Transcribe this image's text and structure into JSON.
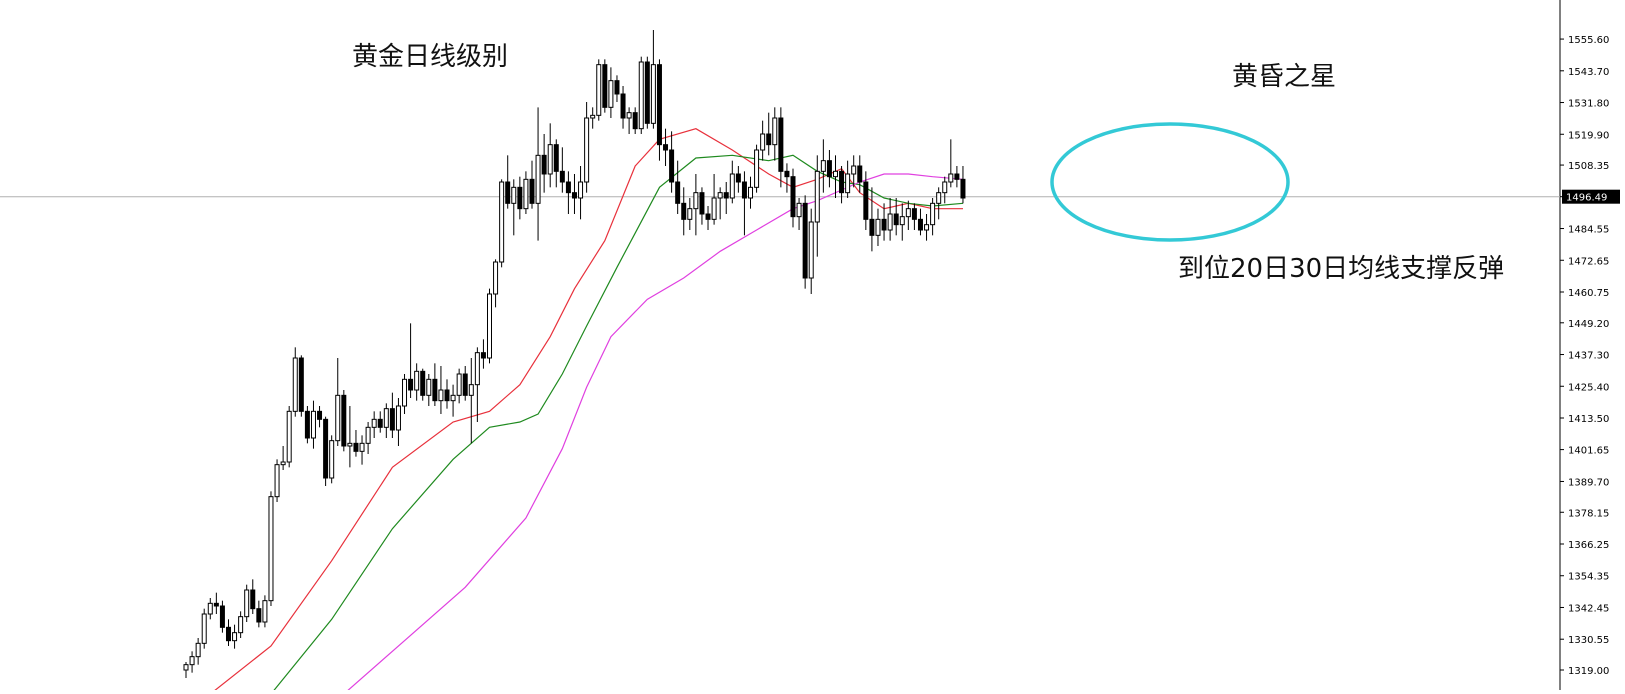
{
  "annotations": {
    "title": "黄金日线级别",
    "pattern": "黄昏之星",
    "support": "到位20日30日均线支撑反弹"
  },
  "colors": {
    "background": "#ffffff",
    "candle_up_fill": "#ffffff",
    "candle_down_fill": "#000000",
    "candle_outline": "#000000",
    "ma_red": "#e8313c",
    "ma_green": "#1f8a1f",
    "ma_magenta": "#e040e0",
    "circle": "#33c9d6",
    "crosshair": "#b0b0b0"
  },
  "chart_data": {
    "type": "candlestick",
    "title": "",
    "xlabel": "",
    "ylabel": "",
    "ylim": [
      1313,
      1562
    ],
    "ytick_labels": [
      "1555.60",
      "1543.70",
      "1531.80",
      "1519.90",
      "1508.35",
      "1496.49",
      "1484.55",
      "1472.65",
      "1460.75",
      "1449.20",
      "1437.30",
      "1425.40",
      "1413.50",
      "1401.65",
      "1389.70",
      "1378.15",
      "1366.25",
      "1354.35",
      "1342.45",
      "1330.55",
      "1319.00"
    ],
    "current_price": "1496.49",
    "grid": false,
    "candles": [
      [
        1319.0,
        1322.0,
        1316.0,
        1321.0
      ],
      [
        1321.0,
        1326.0,
        1318.0,
        1324.0
      ],
      [
        1324.0,
        1331.0,
        1321.0,
        1329.0
      ],
      [
        1329.0,
        1342.0,
        1327.0,
        1340.0
      ],
      [
        1340.0,
        1346.0,
        1338.0,
        1344.0
      ],
      [
        1344.0,
        1348.0,
        1340.0,
        1343.0
      ],
      [
        1343.0,
        1345.0,
        1333.0,
        1335.0
      ],
      [
        1335.0,
        1338.0,
        1328.0,
        1330.0
      ],
      [
        1330.0,
        1336.0,
        1327.0,
        1333.0
      ],
      [
        1333.0,
        1341.0,
        1331.0,
        1339.0
      ],
      [
        1339.0,
        1351.0,
        1337.0,
        1349.0
      ],
      [
        1349.0,
        1353.0,
        1340.0,
        1342.0
      ],
      [
        1342.0,
        1345.0,
        1335.0,
        1337.0
      ],
      [
        1337.0,
        1347.0,
        1335.0,
        1345.0
      ],
      [
        1345.0,
        1386.0,
        1343.0,
        1384.0
      ],
      [
        1384.0,
        1398.0,
        1382.0,
        1396.0
      ],
      [
        1396.0,
        1403.0,
        1394.0,
        1397.0
      ],
      [
        1397.0,
        1418.0,
        1395.0,
        1416.0
      ],
      [
        1416.0,
        1440.0,
        1414.0,
        1436.0
      ],
      [
        1436.0,
        1437.0,
        1414.0,
        1416.0
      ],
      [
        1416.0,
        1418.0,
        1404.0,
        1406.0
      ],
      [
        1406.0,
        1420.0,
        1402.0,
        1416.0
      ],
      [
        1416.0,
        1418.0,
        1410.0,
        1413.0
      ],
      [
        1413.0,
        1414.0,
        1388.0,
        1391.0
      ],
      [
        1391.0,
        1407.0,
        1389.0,
        1405.0
      ],
      [
        1405.0,
        1436.0,
        1403.0,
        1422.0
      ],
      [
        1422.0,
        1424.0,
        1401.0,
        1403.0
      ],
      [
        1403.0,
        1418.0,
        1395.0,
        1404.0
      ],
      [
        1404.0,
        1409.0,
        1399.0,
        1401.0
      ],
      [
        1401.0,
        1407.0,
        1396.0,
        1404.0
      ],
      [
        1404.0,
        1412.0,
        1400.0,
        1410.0
      ],
      [
        1410.0,
        1416.0,
        1406.0,
        1413.0
      ],
      [
        1413.0,
        1416.0,
        1408.0,
        1410.0
      ],
      [
        1410.0,
        1419.0,
        1406.0,
        1417.0
      ],
      [
        1417.0,
        1423.0,
        1406.0,
        1409.0
      ],
      [
        1409.0,
        1421.0,
        1403.0,
        1418.0
      ],
      [
        1418.0,
        1430.0,
        1415.0,
        1428.0
      ],
      [
        1428.0,
        1449.0,
        1421.0,
        1424.0
      ],
      [
        1424.0,
        1434.0,
        1420.0,
        1431.0
      ],
      [
        1431.0,
        1432.0,
        1420.0,
        1422.0
      ],
      [
        1422.0,
        1430.0,
        1418.0,
        1428.0
      ],
      [
        1428.0,
        1434.0,
        1418.0,
        1420.0
      ],
      [
        1420.0,
        1433.0,
        1415.0,
        1424.0
      ],
      [
        1424.0,
        1428.0,
        1417.0,
        1420.0
      ],
      [
        1420.0,
        1426.0,
        1414.0,
        1422.0
      ],
      [
        1422.0,
        1432.0,
        1419.0,
        1430.0
      ],
      [
        1430.0,
        1433.0,
        1420.0,
        1422.0
      ],
      [
        1422.0,
        1436.0,
        1404.0,
        1426.0
      ],
      [
        1426.0,
        1440.0,
        1412.0,
        1438.0
      ],
      [
        1438.0,
        1443.0,
        1432.0,
        1436.0
      ],
      [
        1436.0,
        1462.0,
        1434.0,
        1460.0
      ],
      [
        1460.0,
        1473.0,
        1455.0,
        1472.0
      ],
      [
        1472.0,
        1503.0,
        1470.0,
        1502.0
      ],
      [
        1502.0,
        1512.0,
        1492.0,
        1494.0
      ],
      [
        1494.0,
        1503.0,
        1482.0,
        1500.0
      ],
      [
        1500.0,
        1504.0,
        1488.0,
        1492.0
      ],
      [
        1492.0,
        1506.0,
        1490.0,
        1503.0
      ],
      [
        1503.0,
        1510.0,
        1492.0,
        1494.0
      ],
      [
        1494.0,
        1530.0,
        1480.0,
        1512.0
      ],
      [
        1512.0,
        1520.0,
        1498.0,
        1505.0
      ],
      [
        1505.0,
        1524.0,
        1500.0,
        1516.0
      ],
      [
        1516.0,
        1518.0,
        1500.0,
        1506.0
      ],
      [
        1506.0,
        1515.0,
        1498.0,
        1502.0
      ],
      [
        1502.0,
        1506.0,
        1490.0,
        1498.0
      ],
      [
        1498.0,
        1505.0,
        1490.0,
        1496.0
      ],
      [
        1496.0,
        1508.0,
        1488.0,
        1502.0
      ],
      [
        1502.0,
        1532.0,
        1498.0,
        1526.0
      ],
      [
        1526.0,
        1530.0,
        1522.0,
        1527.0
      ],
      [
        1527.0,
        1548.0,
        1525.0,
        1546.0
      ],
      [
        1546.0,
        1548.0,
        1528.0,
        1530.0
      ],
      [
        1530.0,
        1545.0,
        1526.0,
        1540.0
      ],
      [
        1540.0,
        1542.0,
        1532.0,
        1535.0
      ],
      [
        1535.0,
        1538.0,
        1522.0,
        1526.0
      ],
      [
        1526.0,
        1530.0,
        1520.0,
        1528.0
      ],
      [
        1528.0,
        1530.0,
        1520.0,
        1522.0
      ],
      [
        1522.0,
        1549.0,
        1520.0,
        1547.0
      ],
      [
        1547.0,
        1549.0,
        1522.0,
        1524.0
      ],
      [
        1524.0,
        1559.0,
        1522.0,
        1546.0
      ],
      [
        1546.0,
        1548.0,
        1510.0,
        1516.0
      ],
      [
        1516.0,
        1522.0,
        1508.0,
        1514.0
      ],
      [
        1514.0,
        1521.0,
        1498.0,
        1502.0
      ],
      [
        1502.0,
        1510.0,
        1490.0,
        1494.0
      ],
      [
        1494.0,
        1500.0,
        1482.0,
        1488.0
      ],
      [
        1488.0,
        1496.0,
        1484.0,
        1492.0
      ],
      [
        1492.0,
        1505.0,
        1482.0,
        1498.0
      ],
      [
        1498.0,
        1500.0,
        1486.0,
        1490.0
      ],
      [
        1490.0,
        1493.0,
        1484.0,
        1488.0
      ],
      [
        1488.0,
        1505.0,
        1486.0,
        1496.0
      ],
      [
        1496.0,
        1500.0,
        1488.0,
        1498.0
      ],
      [
        1498.0,
        1502.0,
        1490.0,
        1496.0
      ],
      [
        1496.0,
        1510.0,
        1494.0,
        1505.0
      ],
      [
        1505.0,
        1508.0,
        1498.0,
        1502.0
      ],
      [
        1502.0,
        1506.0,
        1482.0,
        1496.0
      ],
      [
        1496.0,
        1504.0,
        1492.0,
        1500.0
      ],
      [
        1500.0,
        1516.0,
        1498.0,
        1514.0
      ],
      [
        1514.0,
        1525.0,
        1510.0,
        1520.0
      ],
      [
        1520.0,
        1528.0,
        1512.0,
        1516.0
      ],
      [
        1516.0,
        1530.0,
        1510.0,
        1526.0
      ],
      [
        1526.0,
        1530.0,
        1500.0,
        1506.0
      ],
      [
        1506.0,
        1509.0,
        1498.0,
        1504.0
      ],
      [
        1504.0,
        1507.0,
        1485.0,
        1489.0
      ],
      [
        1489.0,
        1496.0,
        1484.0,
        1494.0
      ],
      [
        1494.0,
        1497.0,
        1462.0,
        1466.0
      ],
      [
        1466.0,
        1492.0,
        1460.0,
        1487.0
      ],
      [
        1487.0,
        1512.0,
        1474.0,
        1506.0
      ],
      [
        1506.0,
        1518.0,
        1498.0,
        1510.0
      ],
      [
        1510.0,
        1514.0,
        1500.0,
        1504.0
      ],
      [
        1504.0,
        1512.0,
        1496.0,
        1506.0
      ],
      [
        1506.0,
        1508.0,
        1494.0,
        1498.0
      ],
      [
        1498.0,
        1510.0,
        1496.0,
        1505.0
      ],
      [
        1505.0,
        1512.0,
        1500.0,
        1508.0
      ],
      [
        1508.0,
        1512.0,
        1498.0,
        1502.0
      ],
      [
        1502.0,
        1506.0,
        1484.0,
        1488.0
      ],
      [
        1488.0,
        1500.0,
        1476.0,
        1482.0
      ],
      [
        1482.0,
        1492.0,
        1478.0,
        1488.0
      ],
      [
        1488.0,
        1494.0,
        1480.0,
        1484.0
      ],
      [
        1484.0,
        1496.0,
        1480.0,
        1490.0
      ],
      [
        1490.0,
        1496.0,
        1482.0,
        1486.0
      ],
      [
        1486.0,
        1494.0,
        1480.0,
        1489.0
      ],
      [
        1489.0,
        1495.0,
        1484.0,
        1492.0
      ],
      [
        1492.0,
        1494.0,
        1484.0,
        1488.0
      ],
      [
        1488.0,
        1492.0,
        1482.0,
        1484.0
      ],
      [
        1484.0,
        1490.0,
        1480.0,
        1486.0
      ],
      [
        1486.0,
        1496.0,
        1482.0,
        1494.0
      ],
      [
        1494.0,
        1500.0,
        1488.0,
        1498.0
      ],
      [
        1498.0,
        1504.0,
        1494.0,
        1502.0
      ],
      [
        1502.0,
        1518.0,
        1500.0,
        1505.0
      ],
      [
        1505.0,
        1508.0,
        1500.0,
        1503.0
      ],
      [
        1503.0,
        1508.0,
        1494.0,
        1496.0
      ]
    ],
    "series": [
      {
        "label_ma": "ma_red",
        "values": [
          [
            4,
            1310
          ],
          [
            14,
            1328
          ],
          [
            24,
            1360
          ],
          [
            34,
            1395
          ],
          [
            44,
            1412
          ],
          [
            50,
            1416
          ],
          [
            55,
            1426
          ],
          [
            60,
            1444
          ],
          [
            64,
            1462
          ],
          [
            69,
            1480
          ],
          [
            74,
            1508
          ],
          [
            78,
            1518
          ],
          [
            84,
            1522
          ],
          [
            90,
            1514
          ],
          [
            96,
            1505
          ],
          [
            100,
            1500
          ],
          [
            104,
            1503
          ],
          [
            108,
            1507
          ],
          [
            111,
            1498
          ],
          [
            115,
            1492
          ],
          [
            119,
            1494
          ],
          [
            123,
            1492
          ],
          [
            128,
            1492
          ]
        ]
      },
      {
        "label_ma": "ma_green",
        "values": [
          [
            14,
            1310
          ],
          [
            24,
            1338
          ],
          [
            34,
            1372
          ],
          [
            44,
            1398
          ],
          [
            50,
            1410
          ],
          [
            55,
            1412
          ],
          [
            58,
            1415
          ],
          [
            62,
            1430
          ],
          [
            66,
            1448
          ],
          [
            71,
            1470
          ],
          [
            78,
            1500
          ],
          [
            84,
            1511
          ],
          [
            90,
            1512
          ],
          [
            96,
            1510
          ],
          [
            100,
            1512
          ],
          [
            104,
            1506
          ],
          [
            108,
            1502
          ],
          [
            111,
            1501
          ],
          [
            115,
            1496
          ],
          [
            119,
            1494
          ],
          [
            123,
            1493
          ],
          [
            128,
            1494
          ]
        ]
      },
      {
        "label_ma": "ma_magenta",
        "values": [
          [
            26,
            1310
          ],
          [
            36,
            1330
          ],
          [
            46,
            1350
          ],
          [
            56,
            1376
          ],
          [
            62,
            1402
          ],
          [
            66,
            1425
          ],
          [
            70,
            1444
          ],
          [
            76,
            1458
          ],
          [
            82,
            1466
          ],
          [
            88,
            1476
          ],
          [
            94,
            1484
          ],
          [
            100,
            1492
          ],
          [
            104,
            1495
          ],
          [
            108,
            1499
          ],
          [
            111,
            1502
          ],
          [
            115,
            1505
          ],
          [
            119,
            1505
          ],
          [
            123,
            1504
          ],
          [
            128,
            1503
          ]
        ]
      }
    ]
  }
}
